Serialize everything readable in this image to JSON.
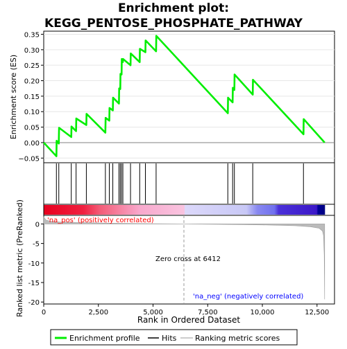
{
  "title_line1": "Enrichment plot:",
  "title_line2": "KEGG_PENTOSE_PHOSPHATE_PATHWAY",
  "chart_data": {
    "type": "line",
    "title": "Enrichment plot: KEGG_PENTOSE_PHOSPHATE_PATHWAY",
    "es_panel": {
      "ylabel": "Enrichment score (ES)",
      "ylim": [
        -0.065,
        0.36
      ],
      "yticks": [
        -0.05,
        0.0,
        0.05,
        0.1,
        0.15,
        0.2,
        0.25,
        0.3,
        0.35
      ],
      "ytick_labels": [
        "−0.05",
        "0.00",
        "0.05",
        "0.10",
        "0.15",
        "0.20",
        "0.25",
        "0.30",
        "0.35"
      ],
      "series": [
        {
          "name": "Enrichment profile",
          "color": "#00ee00",
          "x": [
            0,
            580,
            590,
            690,
            700,
            1260,
            1270,
            1480,
            1490,
            1950,
            1960,
            2820,
            2830,
            3000,
            3010,
            3160,
            3170,
            3440,
            3450,
            3500,
            3510,
            3560,
            3570,
            3620,
            3630,
            3970,
            3980,
            4390,
            4400,
            4650,
            4660,
            5140,
            5150,
            8420,
            8430,
            8640,
            8650,
            8720,
            8730,
            9560,
            9570,
            11880,
            11890,
            12850
          ],
          "y": [
            0.0,
            -0.044,
            0.006,
            -0.003,
            0.048,
            0.018,
            0.052,
            0.037,
            0.078,
            0.057,
            0.093,
            0.032,
            0.08,
            0.071,
            0.112,
            0.104,
            0.145,
            0.126,
            0.175,
            0.173,
            0.222,
            0.22,
            0.27,
            0.26,
            0.27,
            0.25,
            0.288,
            0.26,
            0.303,
            0.292,
            0.33,
            0.295,
            0.345,
            0.095,
            0.145,
            0.13,
            0.177,
            0.17,
            0.22,
            0.155,
            0.203,
            0.027,
            0.076,
            0.0
          ]
        }
      ]
    },
    "hits": [
      580,
      690,
      1260,
      1480,
      1950,
      2820,
      3000,
      3160,
      3440,
      3500,
      3560,
      3620,
      3970,
      4390,
      4650,
      5140,
      8420,
      8640,
      8720,
      9560,
      11880
    ],
    "ranked_panel": {
      "ylabel": "Ranked list metric (PreRanked)",
      "xlabel": "Rank in Ordered Dataset",
      "ylim": [
        -20.5,
        2.2
      ],
      "yticks": [
        0,
        -5,
        -10,
        -15,
        -20
      ],
      "ytick_labels": [
        "0",
        "-5",
        "-10",
        "-15",
        "-20"
      ],
      "xlim": [
        0,
        13300
      ],
      "xticks": [
        0,
        2500,
        5000,
        7500,
        10000,
        12500
      ],
      "xtick_labels": [
        "0",
        "2,500",
        "5,000",
        "7,500",
        "10,000",
        "12,500"
      ],
      "zero_cross": 6412,
      "metric_profile": {
        "x": [
          0,
          100,
          300,
          700,
          1500,
          3000,
          5000,
          6412,
          8000,
          10000,
          11500,
          12200,
          12600,
          12750,
          12800,
          12830,
          12850
        ],
        "y": [
          1.8,
          1.0,
          0.7,
          0.5,
          0.35,
          0.2,
          0.08,
          0.0,
          -0.1,
          -0.25,
          -0.45,
          -0.7,
          -1.1,
          -1.8,
          -3.0,
          -8.0,
          -19.3
        ]
      }
    },
    "labels": {
      "pos": "'na_pos' (positively correlated)",
      "neg": "'na_neg' (negatively correlated)",
      "zero": "Zero cross at 6412"
    },
    "legend": {
      "placement": "bottom",
      "entries": [
        "Enrichment profile",
        "Hits",
        "Ranking metric scores"
      ]
    }
  },
  "colors": {
    "es_line": "#00ee00",
    "pos_label": "#ff0000",
    "neg_label": "#0000ff",
    "hits": "#000000",
    "metric": "#bbbbbb",
    "bar_stops": [
      "#e8001e",
      "#f55570",
      "#f9b0ce",
      "#d8d8f8",
      "#7f7ff2",
      "#3010c8",
      "#0000a0"
    ]
  }
}
